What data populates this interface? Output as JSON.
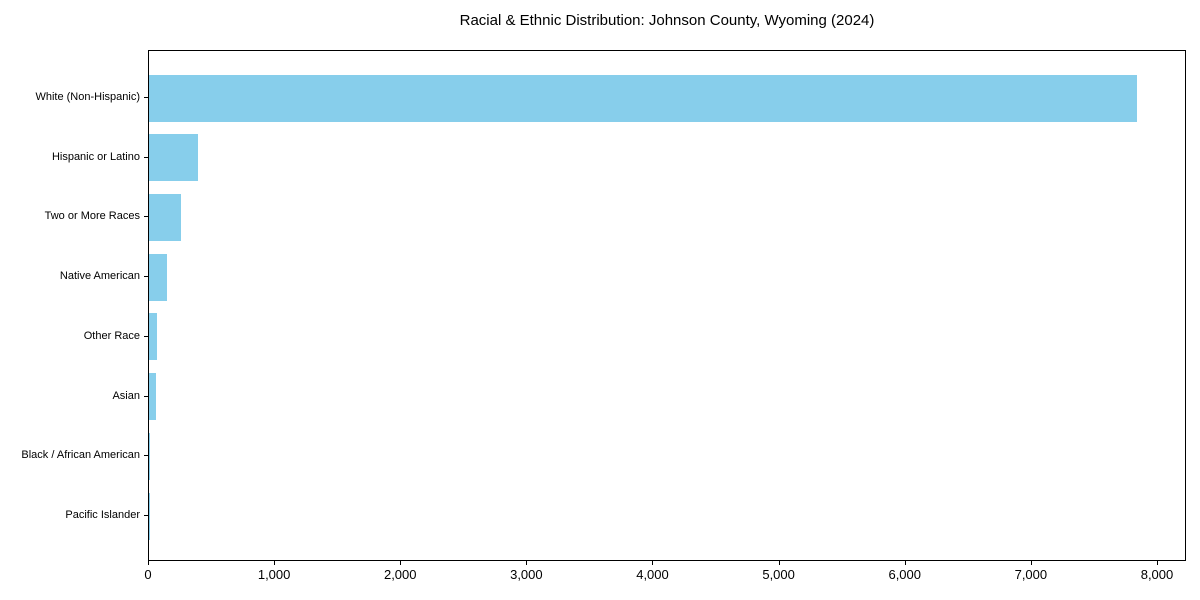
{
  "chart_data": {
    "type": "bar",
    "orientation": "horizontal",
    "title": "Racial & Ethnic Distribution: Johnson County, Wyoming (2024)",
    "categories": [
      "White (Non-Hispanic)",
      "Hispanic or Latino",
      "Two or More Races",
      "Native American",
      "Other Race",
      "Asian",
      "Black / African American",
      "Pacific Islander"
    ],
    "values": [
      7830,
      385,
      250,
      140,
      65,
      58,
      10,
      5
    ],
    "xlabel": "",
    "ylabel": "",
    "xlim": [
      0,
      8230
    ],
    "xticks": [
      0,
      1000,
      2000,
      3000,
      4000,
      5000,
      6000,
      7000,
      8000
    ],
    "xtick_labels": [
      "0",
      "1,000",
      "2,000",
      "3,000",
      "4,000",
      "5,000",
      "6,000",
      "7,000",
      "8,000"
    ],
    "bar_color": "#87CEEB",
    "grid": false,
    "legend_position": "none"
  }
}
